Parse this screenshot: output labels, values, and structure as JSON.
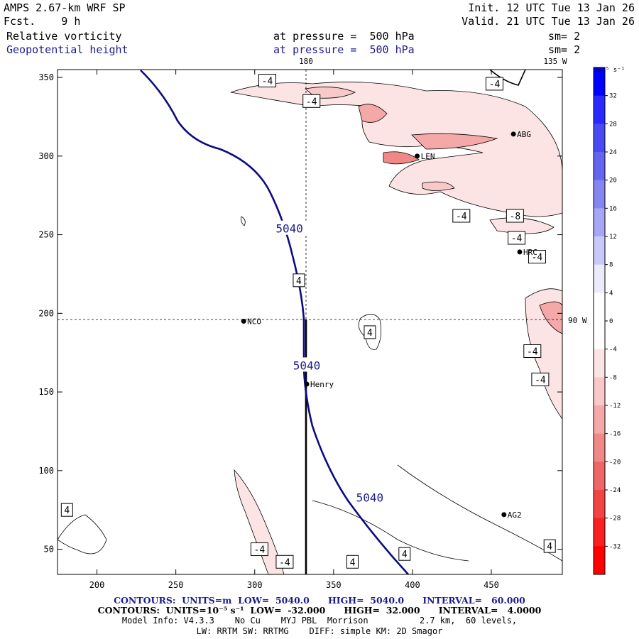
{
  "header": {
    "model": "AMPS 2.67-km WRF SP",
    "init": "Init. 12 UTC Tue 13 Jan 26",
    "fcst_label": "Fcst.",
    "fcst_value": "9 h",
    "valid": "Valid. 21 UTC Tue 13 Jan 26",
    "field1_name": "Relative vorticity",
    "field1_pressure": "at pressure =  500 hPa",
    "field1_sm": "sm= 2",
    "field2_name": "Geopotential height",
    "field2_pressure": "at pressure =  500 hPa",
    "field2_sm": "sm= 2"
  },
  "map": {
    "x_ticks": [
      "200",
      "250",
      "300",
      "350",
      "400",
      "450"
    ],
    "y_ticks": [
      "50",
      "100",
      "150",
      "200",
      "250",
      "300",
      "350"
    ],
    "meridian_top_label": "180",
    "meridian_135_label": "135 W",
    "parallel_label": "90 W",
    "height_contour_label": "5040",
    "stations": [
      {
        "name": "NCO",
        "x": 293,
        "y": 195
      },
      {
        "name": "Henry",
        "x": 333,
        "y": 155
      },
      {
        "name": "HRC",
        "x": 468,
        "y": 239
      },
      {
        "name": "ABG",
        "x": 464,
        "y": 314
      },
      {
        "name": "LEN",
        "x": 403,
        "y": 300
      },
      {
        "name": "AG2",
        "x": 458,
        "y": 72
      }
    ],
    "vorticity_labels": [
      {
        "text": "-4",
        "x": 308,
        "y": 348
      },
      {
        "text": "-4",
        "x": 336,
        "y": 335
      },
      {
        "text": "-4",
        "x": 452,
        "y": 346
      },
      {
        "text": "-4",
        "x": 431,
        "y": 262
      },
      {
        "text": "-8",
        "x": 465,
        "y": 262
      },
      {
        "text": "-4",
        "x": 466,
        "y": 248
      },
      {
        "text": "-4",
        "x": 479,
        "y": 236
      },
      {
        "text": "4",
        "x": 328,
        "y": 221
      },
      {
        "text": "4",
        "x": 373,
        "y": 188
      },
      {
        "text": "-4",
        "x": 476,
        "y": 176
      },
      {
        "text": "-4",
        "x": 481,
        "y": 158
      },
      {
        "text": "4",
        "x": 181,
        "y": 75
      },
      {
        "text": "-4",
        "x": 303,
        "y": 50
      },
      {
        "text": "-4",
        "x": 319,
        "y": 42
      },
      {
        "text": "4",
        "x": 362,
        "y": 42
      },
      {
        "text": "4",
        "x": 395,
        "y": 47
      },
      {
        "text": "4",
        "x": 487,
        "y": 52
      }
    ],
    "height_labels": [
      {
        "text": "5040",
        "x": 322,
        "y": 254
      },
      {
        "text": "5040",
        "x": 333,
        "y": 167
      },
      {
        "text": "5040",
        "x": 373,
        "y": 83
      }
    ]
  },
  "colorbar": {
    "unit": "10⁻⁵ s⁻¹",
    "levels": [
      "32",
      "28",
      "24",
      "20",
      "16",
      "12",
      "8",
      "4",
      "0",
      "-4",
      "-8",
      "-12",
      "-16",
      "-20",
      "-24",
      "-28",
      "-32"
    ],
    "colors": [
      "#0000ff",
      "#2a2aff",
      "#4a4af5",
      "#6565f0",
      "#8686f2",
      "#a6a6f5",
      "#c9c9f9",
      "#ebebfd",
      "#ffffff",
      "#ffffff",
      "#fde4e4",
      "#f9c8c8",
      "#f5a8a8",
      "#f18888",
      "#ee6666",
      "#f34444",
      "#fa2020",
      "#ff0000"
    ]
  },
  "footer": {
    "line1_left": "CONTOURS:  UNITS=m  LOW=  5040.0",
    "line1_mid": "HIGH=  5040.0",
    "line1_right": "INTERVAL=   60.000",
    "line2_left": "CONTOURS:  UNITS=10⁻⁵ s⁻¹  LOW=  -32.000",
    "line2_mid": "HIGH=  32.000",
    "line2_right": "INTERVAL=   4.0000",
    "line3": "Model Info: V4.3.3    No Cu    MYJ PBL  Morrison          2.7 km,  60 levels,",
    "line4": "LW: RRTM SW: RRTMG    DIFF: simple KM: 2D Smagor"
  }
}
